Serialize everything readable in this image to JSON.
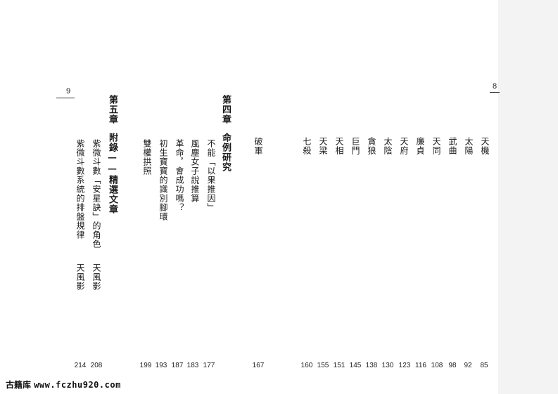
{
  "left_page": {
    "page_number": "9",
    "chapter5": {
      "title": "第五章",
      "appendix_heading": "附錄——精選文章",
      "items": [
        {
          "title": "紫微斗數「安星訣」的角色",
          "author": "天風影",
          "page": "208"
        },
        {
          "title": "紫微斗數系統的排盤規律",
          "author": "天風影",
          "page": "214"
        }
      ]
    },
    "chapter4": {
      "title": "第四章",
      "heading": "命例研究",
      "items": [
        {
          "title": "不能「以果推因」",
          "page": "177"
        },
        {
          "title": "風塵女子說推算",
          "page": "183"
        },
        {
          "title": "革命，會成功嗎？",
          "page": "187"
        },
        {
          "title": "初生寶寶的識別腳環",
          "page": "193"
        },
        {
          "title": "雙權拱照",
          "page": "199"
        }
      ]
    }
  },
  "right_page": {
    "page_number": "8",
    "stars": [
      {
        "name": "天機",
        "page": "85"
      },
      {
        "name": "太陽",
        "page": "92"
      },
      {
        "name": "武曲",
        "page": "98"
      },
      {
        "name": "天同",
        "page": "108"
      },
      {
        "name": "廉貞",
        "page": "116"
      },
      {
        "name": "天府",
        "page": "123"
      },
      {
        "name": "太陰",
        "page": "130"
      },
      {
        "name": "貪狼",
        "page": "138"
      },
      {
        "name": "巨門",
        "page": "145"
      },
      {
        "name": "天相",
        "page": "151"
      },
      {
        "name": "天梁",
        "page": "155"
      },
      {
        "name": "七殺",
        "page": "160"
      },
      {
        "name": "破軍",
        "page": "167"
      }
    ]
  },
  "watermark": {
    "site_name": "古籍库",
    "domain": "www.fczhu920.com"
  }
}
